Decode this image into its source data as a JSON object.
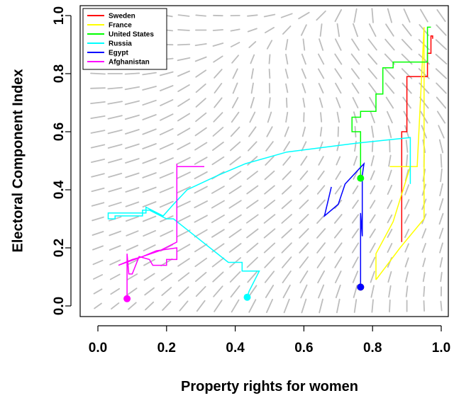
{
  "chart_data": {
    "type": "line",
    "title": "",
    "xlabel": "Property rights for women",
    "ylabel": "Electoral Component Index",
    "xlim": [
      0.0,
      1.0
    ],
    "ylim": [
      0.0,
      1.0
    ],
    "x_ticks": [
      "0.0",
      "0.2",
      "0.4",
      "0.6",
      "0.8",
      "1.0"
    ],
    "y_ticks": [
      "0.0",
      "0.2",
      "0.4",
      "0.6",
      "0.8",
      "1.0"
    ],
    "grid": false,
    "legend_position": "top-left",
    "background_field": "grey direction arrows (vector field)",
    "series": [
      {
        "name": "Sweden",
        "color": "#ff0000",
        "start": [
          0.765,
          0.065
        ],
        "points": [
          [
            0.885,
            0.22
          ],
          [
            0.885,
            0.6
          ],
          [
            0.9,
            0.6
          ],
          [
            0.9,
            0.79
          ],
          [
            0.96,
            0.79
          ],
          [
            0.96,
            0.87
          ],
          [
            0.97,
            0.87
          ],
          [
            0.97,
            0.93
          ],
          [
            0.975,
            0.93
          ],
          [
            0.975,
            0.92
          ]
        ]
      },
      {
        "name": "France",
        "color": "#ffff00",
        "start": [
          0.765,
          0.065
        ],
        "points": [
          [
            0.81,
            0.09
          ],
          [
            0.88,
            0.2
          ],
          [
            0.95,
            0.3
          ],
          [
            0.95,
            0.96
          ],
          [
            0.93,
            0.48
          ],
          [
            0.85,
            0.48
          ],
          [
            0.91,
            0.48
          ],
          [
            0.86,
            0.29
          ],
          [
            0.81,
            0.18
          ],
          [
            0.81,
            0.09
          ]
        ]
      },
      {
        "name": "United States",
        "color": "#00ff00",
        "start": [
          0.765,
          0.44
        ],
        "points": [
          [
            0.765,
            0.44
          ],
          [
            0.765,
            0.6
          ],
          [
            0.74,
            0.6
          ],
          [
            0.74,
            0.65
          ],
          [
            0.765,
            0.65
          ],
          [
            0.765,
            0.67
          ],
          [
            0.81,
            0.67
          ],
          [
            0.81,
            0.73
          ],
          [
            0.83,
            0.73
          ],
          [
            0.83,
            0.82
          ],
          [
            0.86,
            0.82
          ],
          [
            0.86,
            0.84
          ],
          [
            0.96,
            0.84
          ],
          [
            0.96,
            0.96
          ],
          [
            0.97,
            0.96
          ]
        ]
      },
      {
        "name": "Russia",
        "color": "#00ffff",
        "start": [
          0.435,
          0.03
        ],
        "points": [
          [
            0.435,
            0.03
          ],
          [
            0.44,
            0.05
          ],
          [
            0.47,
            0.12
          ],
          [
            0.42,
            0.12
          ],
          [
            0.42,
            0.15
          ],
          [
            0.38,
            0.15
          ],
          [
            0.22,
            0.3
          ],
          [
            0.2,
            0.3
          ],
          [
            0.15,
            0.33
          ],
          [
            0.13,
            0.33
          ],
          [
            0.13,
            0.31
          ],
          [
            0.05,
            0.31
          ],
          [
            0.05,
            0.3
          ],
          [
            0.03,
            0.3
          ],
          [
            0.03,
            0.32
          ],
          [
            0.14,
            0.32
          ],
          [
            0.14,
            0.34
          ],
          [
            0.19,
            0.31
          ],
          [
            0.22,
            0.35
          ],
          [
            0.26,
            0.4
          ],
          [
            0.35,
            0.45
          ],
          [
            0.43,
            0.49
          ],
          [
            0.52,
            0.52
          ],
          [
            0.55,
            0.53
          ],
          [
            0.75,
            0.56
          ],
          [
            0.91,
            0.58
          ],
          [
            0.91,
            0.42
          ],
          [
            0.91,
            0.55
          ]
        ]
      },
      {
        "name": "Egypt",
        "color": "#0000ff",
        "start": [
          0.765,
          0.065
        ],
        "points": [
          [
            0.765,
            0.065
          ],
          [
            0.765,
            0.32
          ],
          [
            0.77,
            0.24
          ],
          [
            0.77,
            0.45
          ],
          [
            0.775,
            0.49
          ],
          [
            0.72,
            0.42
          ],
          [
            0.7,
            0.35
          ],
          [
            0.66,
            0.31
          ],
          [
            0.68,
            0.41
          ]
        ]
      },
      {
        "name": "Afghanistan",
        "color": "#ff00ff",
        "start": [
          0.085,
          0.025
        ],
        "points": [
          [
            0.085,
            0.025
          ],
          [
            0.085,
            0.18
          ],
          [
            0.09,
            0.11
          ],
          [
            0.1,
            0.11
          ],
          [
            0.12,
            0.17
          ],
          [
            0.15,
            0.16
          ],
          [
            0.16,
            0.14
          ],
          [
            0.2,
            0.14
          ],
          [
            0.2,
            0.16
          ],
          [
            0.23,
            0.16
          ],
          [
            0.23,
            0.2
          ],
          [
            0.17,
            0.19
          ],
          [
            0.13,
            0.17
          ],
          [
            0.06,
            0.14
          ],
          [
            0.1,
            0.16
          ],
          [
            0.13,
            0.17
          ],
          [
            0.18,
            0.19
          ],
          [
            0.23,
            0.22
          ],
          [
            0.23,
            0.49
          ],
          [
            0.23,
            0.48
          ],
          [
            0.31,
            0.48
          ]
        ]
      }
    ]
  }
}
